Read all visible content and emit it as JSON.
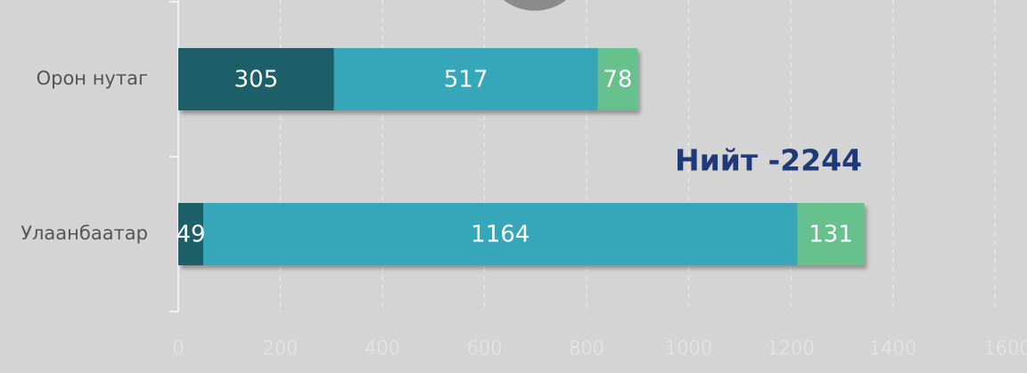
{
  "chart_data": {
    "type": "stacked_bar_horizontal",
    "categories": [
      "Орон нутаг",
      "Улаанбаатар"
    ],
    "series": [
      {
        "color": "#1f5f68",
        "values": [
          305,
          49
        ]
      },
      {
        "color": "#36a7b8",
        "values": [
          517,
          1164
        ]
      },
      {
        "color": "#66c18c",
        "values": [
          78,
          131
        ]
      }
    ],
    "xlim": [
      0,
      1600
    ],
    "xticks": [
      0,
      200,
      400,
      600,
      800,
      1000,
      1200,
      1400,
      1600
    ],
    "grid": true,
    "annotations": [
      "Нийт -2244"
    ]
  }
}
